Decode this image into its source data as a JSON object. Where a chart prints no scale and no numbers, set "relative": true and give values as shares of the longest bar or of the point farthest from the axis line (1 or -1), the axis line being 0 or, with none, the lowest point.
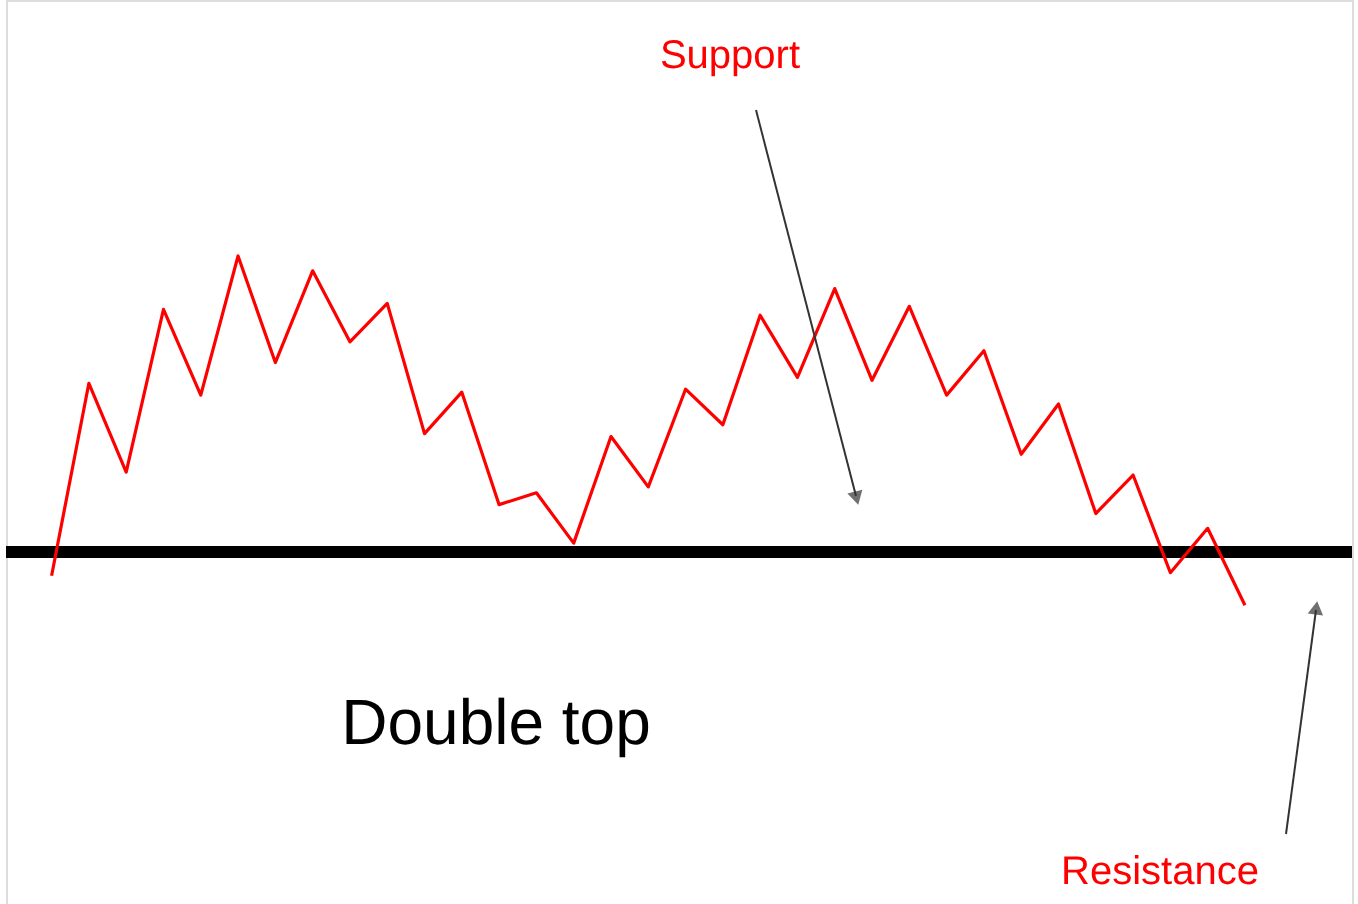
{
  "chart_data": {
    "type": "line",
    "relative": true,
    "categories": [
      null,
      null,
      null,
      null,
      null,
      null,
      null,
      null,
      null,
      null,
      null,
      null,
      null,
      null,
      null,
      null,
      null,
      null,
      null,
      null,
      null,
      null,
      null,
      null,
      null,
      null,
      null,
      null,
      null,
      null,
      null,
      null,
      null
    ],
    "series": [
      {
        "color": "#ff0000",
        "values": [
          -0.08,
          0.57,
          0.27,
          0.82,
          0.53,
          1.0,
          0.64,
          0.95,
          0.71,
          0.84,
          0.4,
          0.54,
          0.16,
          0.2,
          0.03,
          0.39,
          0.22,
          0.55,
          0.43,
          0.8,
          0.59,
          0.89,
          0.58,
          0.83,
          0.53,
          0.68,
          0.33,
          0.5,
          0.13,
          0.26,
          -0.07,
          0.08,
          -0.18
        ]
      }
    ],
    "ref_lines": [
      {
        "axis": "y",
        "value": 0,
        "color": "#000000"
      }
    ],
    "annotations": [
      "Support",
      "Resistance",
      "Double top"
    ],
    "marker": "none",
    "line_style": "solid"
  }
}
